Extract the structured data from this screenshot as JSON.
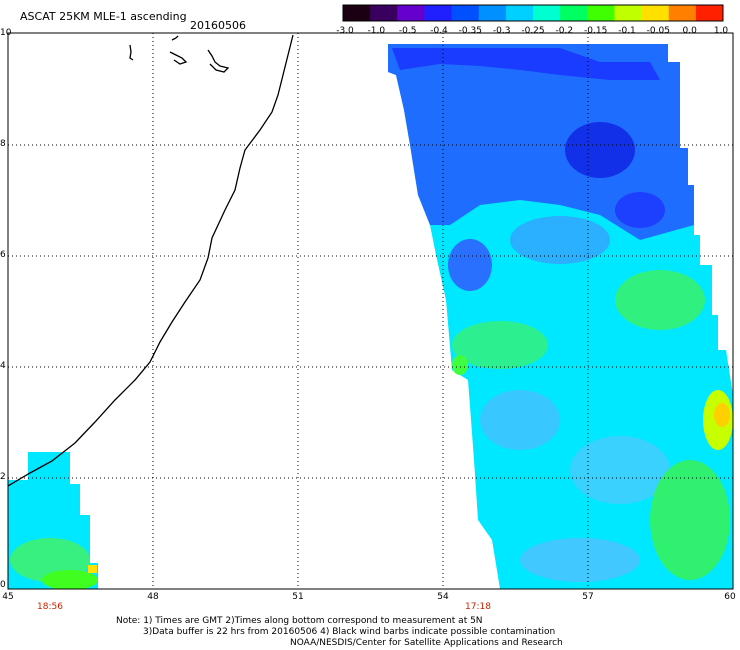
{
  "title": "ASCAT 25KM MLE-1 ascending",
  "date": "20160506",
  "colorbar": {
    "labels": [
      "-3.0",
      "-1.0",
      "-0.5",
      "-0.4",
      "-0.35",
      "-0.3",
      "-0.25",
      "-0.2",
      "-0.15",
      "-0.1",
      "-0.05",
      "0.0",
      "1.0"
    ],
    "colors": [
      "#1a0010",
      "#3a0060",
      "#6600cc",
      "#2020ff",
      "#0050ff",
      "#0090ff",
      "#00d0ff",
      "#00ffd0",
      "#00ff60",
      "#40ff00",
      "#c0ff00",
      "#ffe000",
      "#ff8000",
      "#ff2000"
    ]
  },
  "axes": {
    "y_ticks": [
      "10",
      "8",
      "6",
      "4",
      "2",
      "0"
    ],
    "x_ticks": [
      "45",
      "48",
      "51",
      "54",
      "57",
      "60"
    ],
    "x_range": [
      45,
      60
    ],
    "y_range": [
      0,
      10
    ]
  },
  "times": [
    "18:56",
    "17:18"
  ],
  "notes": [
    "Note: 1) Times are GMT 2)Times along bottom correspond to measurement at 5N",
    "3)Data buffer is 22 hrs from 20160506 4) Black wind barbs indicate possible contamination",
    "NOAA/NESDIS/Center for Satellite Applications and Research"
  ]
}
